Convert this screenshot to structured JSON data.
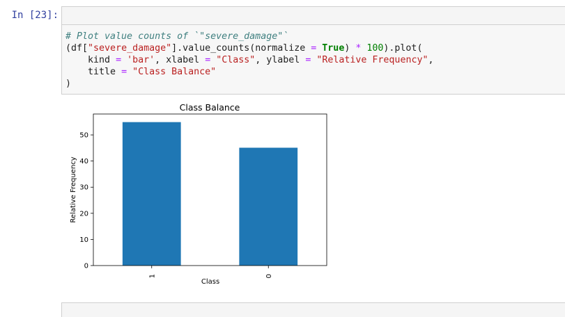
{
  "cell": {
    "prompt": "In [23]:"
  },
  "code": {
    "line1_comment": "# Plot value counts of `\"severe_damage\"`",
    "line2_a": "(df[",
    "line2_str": "\"severe_damage\"",
    "line2_b": "].value_counts(normalize ",
    "line2_eq": "=",
    "line2_sp": " ",
    "line2_kw": "True",
    "line2_c": ") ",
    "line2_mul": "*",
    "line2_sp2": " ",
    "line2_num": "100",
    "line2_d": ").plot(",
    "line3_a": "    kind ",
    "line3_eq1": "=",
    "line3_sp1": " ",
    "line3_str1": "'bar'",
    "line3_b": ", xlabel ",
    "line3_eq2": "=",
    "line3_sp2": " ",
    "line3_str2": "\"Class\"",
    "line3_c": ", ylabel ",
    "line3_eq3": "=",
    "line3_sp3": " ",
    "line3_str3": "\"Relative Frequency\"",
    "line3_d": ",",
    "line4_a": "    title ",
    "line4_eq": "=",
    "line4_sp": " ",
    "line4_str": "\"Class Balance\"",
    "line5": ")"
  },
  "colors": {
    "bar": "#1f77b4"
  },
  "chart_data": {
    "type": "bar",
    "title": "Class Balance",
    "xlabel": "Class",
    "ylabel": "Relative Frequency",
    "categories": [
      "1",
      "0"
    ],
    "values": [
      54.9,
      45.1
    ],
    "ylim": [
      0,
      58
    ],
    "yticks": [
      0,
      10,
      20,
      30,
      40,
      50
    ],
    "grid": false
  }
}
